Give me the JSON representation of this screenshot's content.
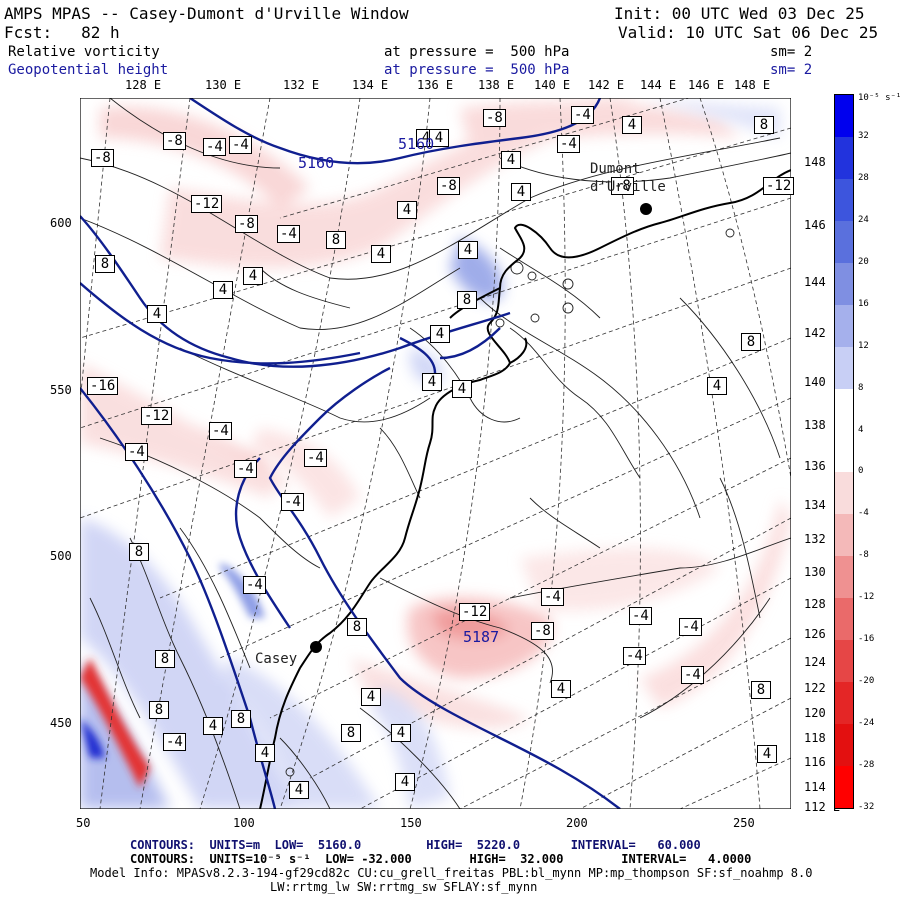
{
  "header": {
    "title": "AMPS MPAS -- Casey-Dumont d'Urville Window",
    "init": "Init: 00 UTC Wed 03 Dec 25",
    "fcst": "Fcst:   82 h",
    "valid": "Valid: 10 UTC Sat 06 Dec 25",
    "field1_name": "Relative vorticity",
    "field1_level": "at pressure =  500 hPa",
    "field1_sm": "sm= 2",
    "field2_name": "Geopotential height",
    "field2_level": "at pressure =  500 hPa",
    "field2_sm": "sm= 2"
  },
  "lon_top_labels": [
    "128 E",
    "130 E",
    "132 E",
    "134 E",
    "136 E",
    "138 E",
    "140 E",
    "142 E",
    "144 E",
    "146 E",
    "148 E"
  ],
  "lon_right_labels": [
    "148 E",
    "146 E",
    "144 E",
    "142 E",
    "140 E",
    "138 E",
    "136 E",
    "134 E",
    "132 E",
    "130 E",
    "128 E",
    "126 E",
    "124 E",
    "122 E",
    "120 E",
    "118 E",
    "116 E",
    "114 E",
    "112 E"
  ],
  "x_axis_labels": [
    "50",
    "100",
    "150",
    "200",
    "250"
  ],
  "y_axis_labels": [
    "600",
    "550",
    "500",
    "450"
  ],
  "colorbar": {
    "unit": "10⁻⁵ s⁻¹",
    "labels": [
      "32",
      "28",
      "24",
      "20",
      "16",
      "12",
      "8",
      "4",
      "0",
      "-4",
      "-8",
      "-12",
      "-16",
      "-20",
      "-24",
      "-28",
      "-32"
    ],
    "colors": [
      "#0000ee",
      "#2233dd",
      "#3d55dd",
      "#5a70dd",
      "#7f8fe2",
      "#a5b0ec",
      "#c8cff5",
      "#ffffff",
      "#ffffff",
      "#f9dcdc",
      "#f4b9b9",
      "#ef9191",
      "#ea6a6a",
      "#e64646",
      "#e42626",
      "#e31010",
      "#ff0000"
    ]
  },
  "places": {
    "dumont": "Dumont\nd'Urville",
    "casey": "Casey"
  },
  "height_labels": [
    "5160",
    "5160",
    "5187"
  ],
  "vort_labels": [
    "-8",
    "-4",
    "-8",
    "-4",
    "4",
    "-8",
    "-4",
    "4",
    "8",
    "4",
    "4",
    "-4",
    "-8",
    "-12",
    "-8",
    "-12",
    "-8",
    "-4",
    "8",
    "4",
    "4",
    "8",
    "4",
    "4",
    "4",
    "4",
    "4",
    "-16",
    "-12",
    "-4",
    "-4",
    "-4",
    "-4",
    "4",
    "4",
    "-4",
    "8",
    "4",
    "4",
    "8",
    "8",
    "-12",
    "-8",
    "-4",
    "-4",
    "-4",
    "-4",
    "-4",
    "4",
    "-4",
    "8",
    "8",
    "8",
    "8",
    "8",
    "4",
    "-4",
    "4",
    "4",
    "8",
    "4",
    "4",
    "4",
    "4"
  ],
  "footer": {
    "line1": "CONTOURS:  UNITS=m  LOW=  5160.0         HIGH=  5220.0       INTERVAL=   60.000",
    "line2": "CONTOURS:  UNITS=10⁻⁵ s⁻¹  LOW= -32.000        HIGH=  32.000        INTERVAL=   4.0000",
    "line3": "Model Info: MPASv8.2.3-194-gf29cd82c CU:cu_grell_freitas PBL:bl_mynn MP:mp_thompson SF:sf_noahmp 8.0",
    "line4": "LW:rrtmg_lw SW:rrtmg_sw SFLAY:sf_mynn"
  }
}
